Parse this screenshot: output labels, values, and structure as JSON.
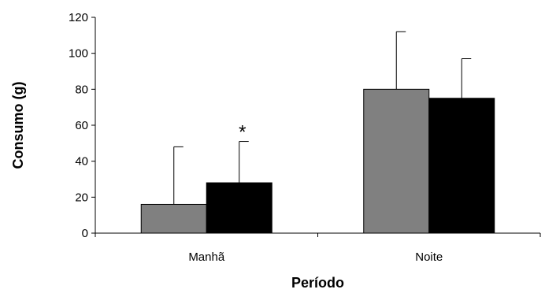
{
  "chart_data": {
    "type": "bar",
    "categories": [
      "Manhã",
      "Noite"
    ],
    "series": [
      {
        "values": [
          16,
          80
        ],
        "error": [
          32,
          32
        ],
        "color": "#808080"
      },
      {
        "values": [
          28,
          75
        ],
        "error": [
          23,
          22
        ],
        "color": "#000000"
      }
    ],
    "xlabel": "Período",
    "ylabel": "Consumo (g)",
    "ylim": [
      0,
      120
    ],
    "yticks": [
      0,
      20,
      40,
      60,
      80,
      100,
      120
    ],
    "annotations": [
      {
        "text": "*",
        "category_index": 0,
        "series_index": 1
      }
    ],
    "grid": false,
    "legend": "none"
  }
}
